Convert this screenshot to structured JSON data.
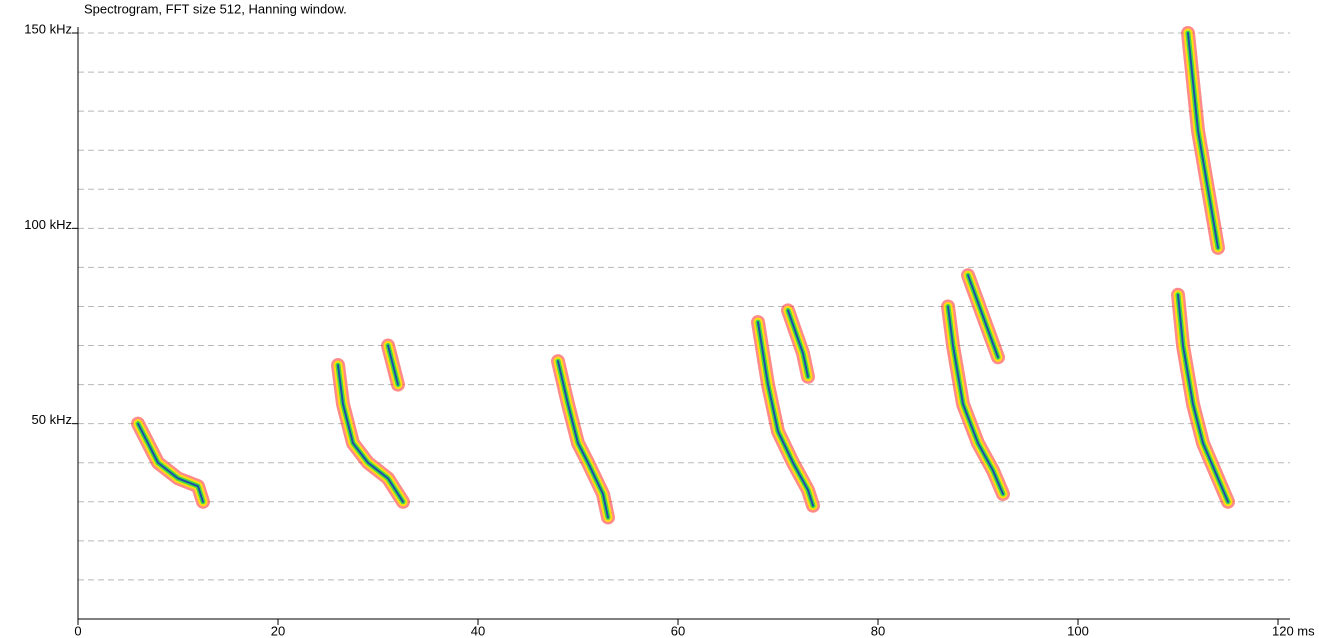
{
  "chart_data": {
    "type": "spectrogram",
    "title": "Spectrogram, FFT size 512, Hanning window.",
    "xlim": [
      0,
      120
    ],
    "xticks": [
      0,
      20,
      40,
      60,
      80,
      100,
      {
        "value": 120,
        "label": "120 ms"
      }
    ],
    "ylim": [
      0,
      150
    ],
    "yticks": [
      {
        "value": 50,
        "label": "50 kHz"
      },
      {
        "value": 100,
        "label": "100 kHz"
      },
      {
        "value": 150,
        "label": "150 kHz"
      }
    ],
    "minor_yticks": [
      10,
      20,
      30,
      40,
      50,
      60,
      70,
      80,
      90,
      100,
      110,
      120,
      130,
      140,
      150
    ],
    "grid": true,
    "intensity_colors": [
      "#ff2a2a",
      "#ffe600",
      "#2edc4a",
      "#1a3fb8"
    ],
    "series": [
      {
        "x": [
          6,
          7,
          8,
          10,
          12,
          12.5
        ],
        "values": [
          50,
          45,
          40,
          36,
          34,
          30
        ]
      },
      {
        "x": [
          26,
          26.5,
          27.5,
          29,
          31,
          32,
          32.5
        ],
        "values": [
          65,
          55,
          45,
          40,
          36,
          32,
          30
        ]
      },
      {
        "x": [
          31,
          32
        ],
        "values": [
          70,
          60
        ]
      },
      {
        "x": [
          48,
          49,
          50,
          51,
          52.5,
          53
        ],
        "values": [
          66,
          55,
          45,
          40,
          32,
          26
        ]
      },
      {
        "x": [
          68,
          69,
          70,
          71.5,
          73,
          73.5
        ],
        "values": [
          76,
          60,
          48,
          40,
          33,
          29
        ]
      },
      {
        "x": [
          71,
          72.5,
          73
        ],
        "values": [
          79,
          68,
          62
        ]
      },
      {
        "x": [
          87,
          87.5,
          88.5,
          90,
          91.5,
          92.5
        ],
        "values": [
          80,
          70,
          55,
          45,
          38,
          32
        ]
      },
      {
        "x": [
          89,
          91,
          92
        ],
        "values": [
          88,
          74,
          67
        ]
      },
      {
        "x": [
          110,
          110.5,
          111.5,
          112.5,
          114,
          115
        ],
        "values": [
          83,
          70,
          55,
          45,
          36,
          30
        ]
      },
      {
        "x": [
          111,
          112,
          113,
          114
        ],
        "values": [
          150,
          125,
          110,
          95
        ]
      }
    ]
  }
}
